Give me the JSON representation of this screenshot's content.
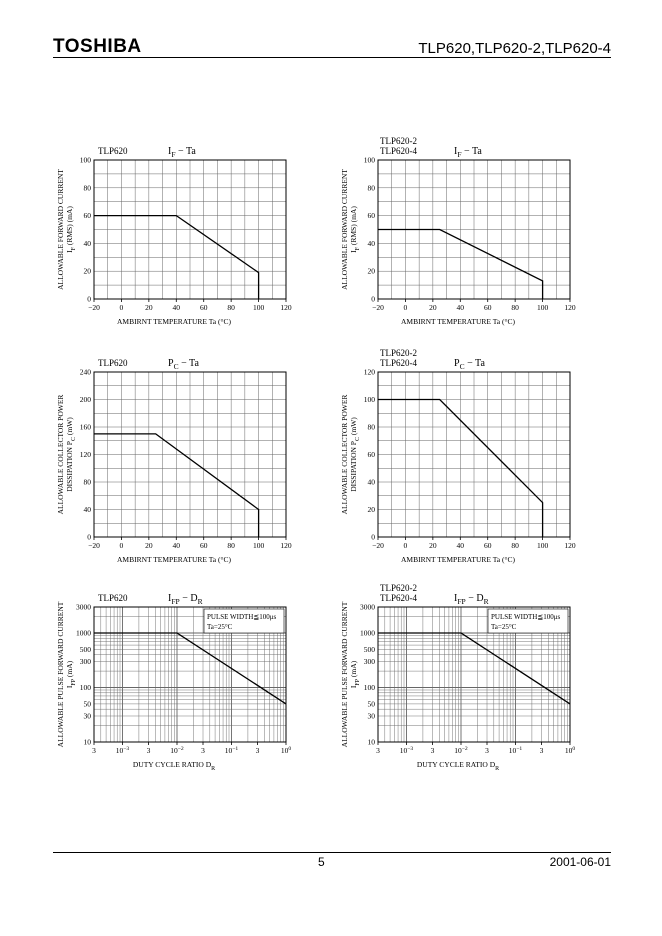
{
  "header": {
    "brand": "TOSHIBA",
    "models": "TLP620,TLP620-2,TLP620-4"
  },
  "footer": {
    "page": "5",
    "date": "2001-06-01"
  },
  "chart_data": [
    {
      "id": "c1",
      "type": "line",
      "device": [
        "TLP620"
      ],
      "title_main": "I",
      "title_sub": "F",
      "title_rest": " − Ta",
      "xlabel": "AMBIRNT TEMPERATURE   Ta   (°C)",
      "ylabel": [
        "ALLOWABLE FORWARD CURRENT",
        "I_F (RMS)   (mA)"
      ],
      "xscale": "linear",
      "xlim": [
        -20,
        120
      ],
      "ylim": [
        0,
        100
      ],
      "xticks": [
        -20,
        0,
        20,
        40,
        60,
        80,
        100,
        120
      ],
      "xtick_labels": [
        "−20",
        "0",
        "20",
        "40",
        "60",
        "80",
        "100",
        "120"
      ],
      "yticks": [
        0,
        20,
        40,
        60,
        80,
        100
      ],
      "ytick_labels": [
        "0",
        "20",
        "40",
        "60",
        "80",
        "100"
      ],
      "x": [
        -20,
        40,
        100,
        100
      ],
      "y": [
        60,
        60,
        19,
        0
      ]
    },
    {
      "id": "c2",
      "type": "line",
      "device": [
        "TLP620-2",
        "TLP620-4"
      ],
      "title_main": "I",
      "title_sub": "F",
      "title_rest": " − Ta",
      "xlabel": "AMBIRNT TEMPERATURE   Ta   (°C)",
      "ylabel": [
        "ALLOWABLE FORWARD CURRENT",
        "I_F (RMS)   (mA)"
      ],
      "xscale": "linear",
      "xlim": [
        -20,
        120
      ],
      "ylim": [
        0,
        100
      ],
      "xticks": [
        -20,
        0,
        20,
        40,
        60,
        80,
        100,
        120
      ],
      "xtick_labels": [
        "−20",
        "0",
        "20",
        "40",
        "60",
        "80",
        "100",
        "120"
      ],
      "yticks": [
        0,
        20,
        40,
        60,
        80,
        100
      ],
      "ytick_labels": [
        "0",
        "20",
        "40",
        "60",
        "80",
        "100"
      ],
      "x": [
        -20,
        25,
        100,
        100
      ],
      "y": [
        50,
        50,
        13,
        0
      ]
    },
    {
      "id": "c3",
      "type": "line",
      "device": [
        "TLP620"
      ],
      "title_main": "P",
      "title_sub": "C",
      "title_rest": " − Ta",
      "xlabel": "AMBIRNT TEMPERATURE   Ta   (°C)",
      "ylabel": [
        "ALLOWABLE COLLECTOR POWER",
        "DISSIPATION   P_C   (mW)"
      ],
      "xscale": "linear",
      "xlim": [
        -20,
        120
      ],
      "ylim": [
        0,
        240
      ],
      "xticks": [
        -20,
        0,
        20,
        40,
        60,
        80,
        100,
        120
      ],
      "xtick_labels": [
        "−20",
        "0",
        "20",
        "40",
        "60",
        "80",
        "100",
        "120"
      ],
      "yticks": [
        0,
        40,
        80,
        120,
        160,
        200,
        240
      ],
      "ytick_labels": [
        "0",
        "40",
        "80",
        "120",
        "160",
        "200",
        "240"
      ],
      "x": [
        -20,
        25,
        100,
        100
      ],
      "y": [
        150,
        150,
        40,
        0
      ]
    },
    {
      "id": "c4",
      "type": "line",
      "device": [
        "TLP620-2",
        "TLP620-4"
      ],
      "title_main": "P",
      "title_sub": "C",
      "title_rest": " − Ta",
      "xlabel": "AMBIRNT TEMPERATURE   Ta   (°C)",
      "ylabel": [
        "ALLOWABLE COLLECTOR POWER",
        "DISSIPATION   P_C   (mW)"
      ],
      "xscale": "linear",
      "xlim": [
        -20,
        120
      ],
      "ylim": [
        0,
        120
      ],
      "xticks": [
        -20,
        0,
        20,
        40,
        60,
        80,
        100,
        120
      ],
      "xtick_labels": [
        "−20",
        "0",
        "20",
        "40",
        "60",
        "80",
        "100",
        "120"
      ],
      "yticks": [
        0,
        20,
        40,
        60,
        80,
        100,
        120
      ],
      "ytick_labels": [
        "0",
        "20",
        "40",
        "60",
        "80",
        "100",
        "120"
      ],
      "x": [
        -20,
        25,
        100,
        100
      ],
      "y": [
        100,
        100,
        25,
        0
      ]
    },
    {
      "id": "c5",
      "type": "line",
      "device": [
        "TLP620"
      ],
      "title_main": "I",
      "title_sub": "FP",
      "title_rest": " − D",
      "title_sub2": "R",
      "xlabel": "DUTY CYCLE RATIO   D",
      "xlabel_sub": "R",
      "ylabel": [
        "ALLOWABLE PULSE FORWARD CURRENT",
        "I_FP   (mA)"
      ],
      "note": [
        "PULSE WIDTH≦100μs",
        "Ta=25°C"
      ],
      "xscale": "log",
      "yscale": "log",
      "xlim": [
        0.0003,
        1
      ],
      "ylim": [
        10,
        3000
      ],
      "xticks": [
        0.0003,
        0.001,
        0.003,
        0.01,
        0.03,
        0.1,
        0.3,
        1
      ],
      "xtick_labels": [
        "3",
        "10^−3",
        "3",
        "10^−2",
        "3",
        "10^−1",
        "3",
        "10^0"
      ],
      "yticks": [
        10,
        30,
        50,
        100,
        300,
        500,
        1000,
        3000
      ],
      "ytick_labels": [
        "10",
        "30",
        "50",
        "100",
        "300",
        "500",
        "1000",
        "3000"
      ],
      "x": [
        0.0003,
        0.01,
        1
      ],
      "y": [
        1000,
        1000,
        50
      ]
    },
    {
      "id": "c6",
      "type": "line",
      "device": [
        "TLP620-2",
        "TLP620-4"
      ],
      "title_main": "I",
      "title_sub": "FP",
      "title_rest": " − D",
      "title_sub2": "R",
      "xlabel": "DUTY CYCLE RATIO   D",
      "xlabel_sub": "R",
      "ylabel": [
        "ALLOWABLE PULSE FORWARD CURRENT",
        "I_FP   (mA)"
      ],
      "note": [
        "PULSE WIDTH≦100μs",
        "Ta=25°C"
      ],
      "xscale": "log",
      "yscale": "log",
      "xlim": [
        0.0003,
        1
      ],
      "ylim": [
        10,
        3000
      ],
      "xticks": [
        0.0003,
        0.001,
        0.003,
        0.01,
        0.03,
        0.1,
        0.3,
        1
      ],
      "xtick_labels": [
        "3",
        "10^−3",
        "3",
        "10^−2",
        "3",
        "10^−1",
        "3",
        "10^0"
      ],
      "yticks": [
        10,
        30,
        50,
        100,
        300,
        500,
        1000,
        3000
      ],
      "ytick_labels": [
        "10",
        "30",
        "50",
        "100",
        "300",
        "500",
        "1000",
        "3000"
      ],
      "x": [
        0.0003,
        0.01,
        1
      ],
      "y": [
        1000,
        1000,
        50
      ]
    }
  ]
}
